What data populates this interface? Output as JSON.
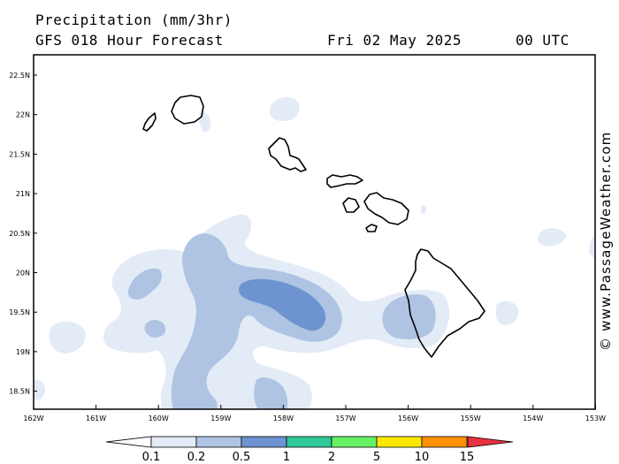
{
  "header": {
    "title": "Precipitation (mm/3hr)",
    "subtitle": "GFS 018 Hour Forecast",
    "date": "Fri 02 May 2025",
    "time": "00 UTC"
  },
  "credit": "© www.PassageWeather.com",
  "axes": {
    "lat_labels": [
      "22.5N",
      "22N",
      "21.5N",
      "21N",
      "20.5N",
      "20N",
      "19.5N",
      "19N",
      "18.5N"
    ],
    "lon_labels": [
      "162W",
      "161W",
      "160W",
      "159W",
      "158W",
      "157W",
      "156W",
      "155W",
      "154W",
      "153W"
    ]
  },
  "colorbar": {
    "labels": [
      "0.1",
      "0.2",
      "0.5",
      "1",
      "2",
      "5",
      "10",
      "15"
    ],
    "colors": [
      "#ffffff",
      "#e3ebf7",
      "#aec4e2",
      "#6d93d0",
      "#2ec89a",
      "#66f066",
      "#ffe800",
      "#ff9000",
      "#e83040"
    ]
  },
  "map": {
    "land_outline_color": "#000000",
    "islands": [
      "Niihau",
      "Kauai",
      "Oahu",
      "Molokai",
      "Lanai",
      "Maui",
      "Kahoolawe",
      "Hawaii"
    ]
  }
}
